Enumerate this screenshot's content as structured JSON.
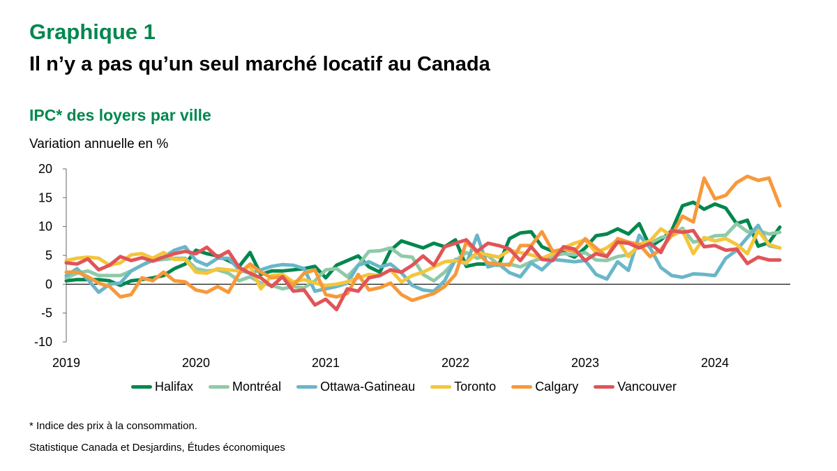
{
  "header": {
    "label": "Graphique 1",
    "title": "Il n’y a pas qu’un seul marché locatif au Canada"
  },
  "footer": {
    "note": "* Indice des prix à la consommation.",
    "source": "Statistique Canada et Desjardins, Études économiques"
  },
  "chart_data": {
    "type": "line",
    "title": "IPC* des loyers par ville",
    "ylabel": "Variation annuelle en %",
    "xlabel": "",
    "ylim": [
      -10,
      20
    ],
    "yticks": [
      "20",
      "15",
      "10",
      "5",
      "0",
      "-5",
      "-10"
    ],
    "xticks": [
      "2019",
      "2020",
      "2021",
      "2022",
      "2023",
      "2024"
    ],
    "x_frequency": "monthly",
    "x_range": [
      "2019-01",
      "2024-07"
    ],
    "grid": false,
    "legend": "bottom",
    "series": [
      {
        "name": "Halifax",
        "color": "#00874e",
        "values": [
          0.6,
          0.8,
          0.8,
          0.8,
          0.6,
          -0.2,
          0.6,
          0.8,
          1.1,
          1.5,
          2.7,
          3.5,
          5.9,
          5.3,
          4.9,
          4.1,
          3.1,
          5.5,
          1.7,
          2.3,
          2.3,
          2.5,
          2.7,
          3.1,
          1.1,
          3.3,
          4.1,
          4.9,
          3.0,
          2.1,
          5.9,
          7.5,
          6.9,
          6.3,
          7.1,
          6.5,
          7.7,
          3.1,
          3.5,
          3.5,
          3.3,
          7.9,
          8.9,
          9.1,
          6.5,
          5.7,
          5.5,
          4.7,
          6.3,
          8.4,
          8.7,
          9.6,
          8.7,
          10.5,
          6.5,
          7.7,
          9.3,
          13.6,
          14.2,
          13.0,
          13.9,
          13.2,
          10.5,
          11.1,
          6.6,
          7.2,
          9.9
        ]
      },
      {
        "name": "Montréal",
        "color": "#8fcaa8",
        "values": [
          1.1,
          1.9,
          2.3,
          1.5,
          1.5,
          1.5,
          2.3,
          3.3,
          4.1,
          4.3,
          4.5,
          4.5,
          2.7,
          2.3,
          2.5,
          1.9,
          0.6,
          1.3,
          0.2,
          -0.2,
          -0.8,
          -0.4,
          -0.6,
          0.6,
          2.5,
          2.7,
          1.3,
          3.3,
          5.7,
          5.8,
          6.3,
          4.9,
          4.7,
          1.7,
          0.6,
          2.1,
          4.1,
          5.5,
          4.5,
          5.0,
          3.3,
          3.5,
          3.0,
          3.9,
          4.5,
          4.9,
          5.3,
          5.1,
          5.5,
          4.2,
          4.1,
          4.8,
          5.1,
          6.5,
          7.1,
          8.1,
          8.5,
          9.7,
          7.3,
          7.7,
          8.4,
          8.5,
          10.5,
          9.1,
          9.3,
          8.7,
          9.0
        ]
      },
      {
        "name": "Ottawa-Gatineau",
        "color": "#69b6c9",
        "values": [
          1.5,
          2.7,
          0.8,
          -1.4,
          0.0,
          0.2,
          2.3,
          3.3,
          4.3,
          4.7,
          5.9,
          6.5,
          4.1,
          3.3,
          4.5,
          4.5,
          2.5,
          1.9,
          2.5,
          3.1,
          3.4,
          3.3,
          2.7,
          -1.2,
          -0.8,
          -0.4,
          0.2,
          3.3,
          3.9,
          3.0,
          3.5,
          2.0,
          -0.2,
          -1.0,
          -1.2,
          0.6,
          4.3,
          3.5,
          8.5,
          3.0,
          3.5,
          2.0,
          1.3,
          3.7,
          2.5,
          4.3,
          4.1,
          3.9,
          4.1,
          1.7,
          0.9,
          3.9,
          2.4,
          8.5,
          6.3,
          2.9,
          1.5,
          1.2,
          1.8,
          1.7,
          1.5,
          4.5,
          5.9,
          8.1,
          10.2,
          6.7,
          6.3
        ]
      },
      {
        "name": "Toronto",
        "color": "#f5c53a",
        "values": [
          4.1,
          4.5,
          4.7,
          4.5,
          3.3,
          3.7,
          5.1,
          5.3,
          4.5,
          5.5,
          4.3,
          4.3,
          2.1,
          1.9,
          2.7,
          2.5,
          2.3,
          3.1,
          -0.8,
          1.5,
          1.7,
          0.4,
          0.8,
          0.2,
          -0.2,
          0.0,
          0.4,
          1.1,
          1.7,
          1.5,
          2.5,
          0.4,
          1.5,
          2.1,
          3.0,
          3.9,
          4.1,
          3.7,
          5.5,
          5.1,
          4.7,
          5.9,
          5.5,
          5.1,
          4.5,
          5.3,
          6.3,
          7.1,
          7.7,
          5.5,
          6.3,
          7.7,
          4.8,
          6.9,
          7.5,
          9.6,
          8.4,
          9.3,
          5.3,
          8.1,
          7.5,
          7.9,
          6.9,
          5.3,
          9.3,
          6.9,
          6.3
        ]
      },
      {
        "name": "Calgary",
        "color": "#f7993a",
        "values": [
          2.1,
          2.1,
          1.3,
          0.2,
          -0.4,
          -2.2,
          -1.8,
          1.1,
          0.6,
          2.1,
          0.6,
          0.4,
          -1.0,
          -1.4,
          -0.4,
          -1.4,
          1.9,
          3.5,
          2.1,
          1.1,
          1.3,
          -0.2,
          1.9,
          2.5,
          -1.8,
          -2.2,
          -1.6,
          1.7,
          -1.0,
          -0.6,
          0.2,
          -1.8,
          -2.8,
          -2.2,
          -1.6,
          -0.4,
          1.7,
          7.3,
          5.5,
          3.7,
          3.5,
          3.3,
          6.7,
          6.7,
          9.1,
          5.7,
          6.1,
          5.7,
          7.9,
          6.3,
          4.8,
          7.9,
          7.3,
          6.9,
          4.8,
          6.0,
          8.5,
          11.8,
          10.8,
          18.4,
          14.8,
          15.4,
          17.6,
          18.7,
          18.0,
          18.4,
          13.6
        ]
      },
      {
        "name": "Vancouver",
        "color": "#e05458",
        "values": [
          3.7,
          3.5,
          4.4,
          2.5,
          3.3,
          4.8,
          4.1,
          4.6,
          4.0,
          4.7,
          5.3,
          5.7,
          5.3,
          6.4,
          4.7,
          5.7,
          2.9,
          1.9,
          1.1,
          -0.4,
          1.3,
          -1.2,
          -1.0,
          -3.6,
          -2.6,
          -4.4,
          -0.8,
          -1.2,
          1.1,
          1.5,
          2.5,
          2.1,
          3.3,
          4.9,
          3.3,
          6.5,
          7.1,
          7.7,
          5.7,
          7.1,
          6.7,
          6.1,
          4.1,
          6.5,
          4.3,
          4.1,
          6.5,
          6.1,
          4.1,
          5.3,
          4.8,
          7.3,
          7.1,
          6.3,
          7.1,
          5.5,
          9.3,
          9.0,
          9.3,
          6.5,
          6.7,
          5.9,
          6.1,
          3.6,
          4.7,
          4.2,
          4.2
        ]
      }
    ]
  }
}
